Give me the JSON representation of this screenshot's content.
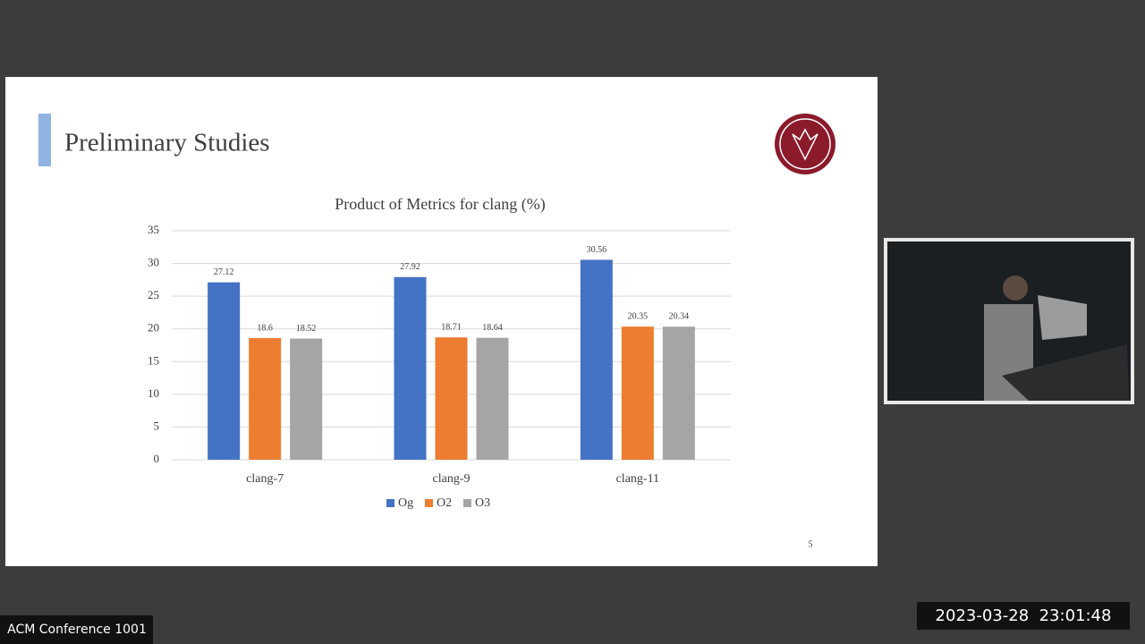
{
  "slide": {
    "title": "Preliminary Studies",
    "page_number": "5"
  },
  "overlay": {
    "room_label": "ACM Conference 1001",
    "timestamp": "2023-03-28  23:01:48"
  },
  "chart_data": {
    "type": "bar",
    "title": "Product of Metrics for clang (%)",
    "categories": [
      "clang-7",
      "clang-9",
      "clang-11"
    ],
    "series": [
      {
        "name": "Og",
        "color": "#4472c4",
        "values": [
          27.12,
          27.92,
          30.56
        ]
      },
      {
        "name": "O2",
        "color": "#ed7d31",
        "values": [
          18.6,
          18.71,
          20.35
        ]
      },
      {
        "name": "O3",
        "color": "#a5a5a5",
        "values": [
          18.52,
          18.64,
          20.34
        ]
      }
    ],
    "ylim": [
      0,
      35
    ],
    "yticks": [
      0,
      5,
      10,
      15,
      20,
      25,
      30,
      35
    ],
    "grid": true,
    "legend": "bottom",
    "data_labels": true
  }
}
